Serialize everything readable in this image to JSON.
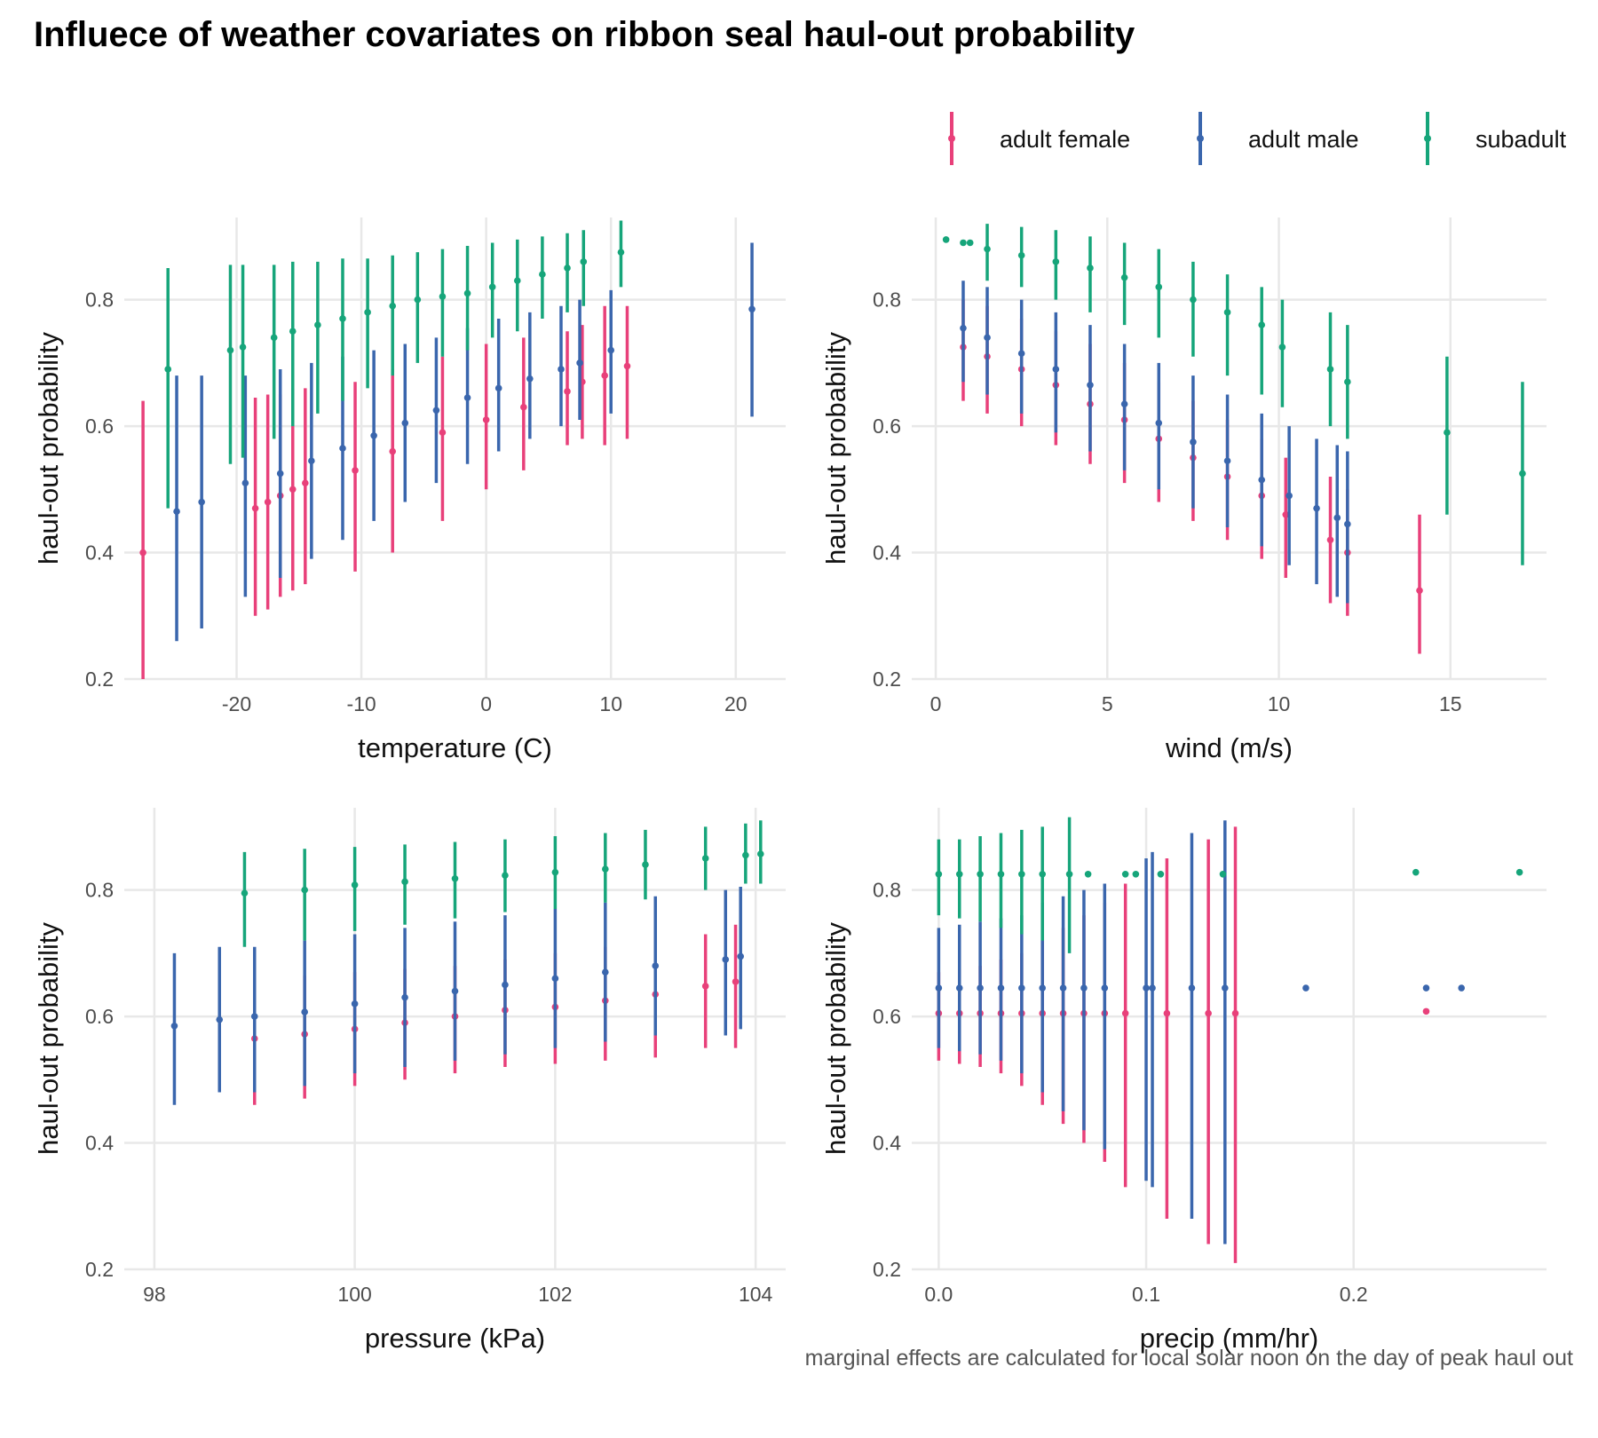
{
  "figure": {
    "title": "Influece of weather covariates on ribbon seal haul-out probability",
    "caption": "marginal effects are calculated for local solar noon on the day of peak haul out"
  },
  "colors": {
    "adult female": "#e8407a",
    "adult male": "#3a66ad",
    "subadult": "#16a57a"
  },
  "legend": {
    "position": "top-right",
    "items": [
      "adult female",
      "adult male",
      "subadult"
    ]
  },
  "chart_data": [
    {
      "type": "scatter",
      "panel": "temperature",
      "xlabel": "temperature (C)",
      "ylabel": "haul-out probability",
      "xlim": [
        -29,
        24
      ],
      "ylim": [
        0.2,
        0.93
      ],
      "xticks": [
        -20,
        -10,
        0,
        10,
        20
      ],
      "xtick_labels": [
        "-20",
        "-10",
        "0",
        "10",
        "20"
      ],
      "yticks": [
        0.2,
        0.4,
        0.6,
        0.8
      ],
      "ytick_labels": [
        "0.2",
        "0.4",
        "0.6",
        "0.8"
      ],
      "grid": true,
      "series": [
        {
          "name": "adult female",
          "x": [
            -27.5,
            -18.5,
            -17.5,
            -16.5,
            -15.5,
            -14.5,
            -10.5,
            -7.5,
            -3.5,
            0,
            3,
            6.5,
            7.7,
            9.5,
            11.3
          ],
          "y": [
            0.4,
            0.47,
            0.48,
            0.49,
            0.5,
            0.51,
            0.53,
            0.56,
            0.59,
            0.61,
            0.63,
            0.655,
            0.67,
            0.68,
            0.695
          ],
          "lower": [
            0.2,
            0.3,
            0.31,
            0.33,
            0.34,
            0.35,
            0.37,
            0.4,
            0.45,
            0.5,
            0.53,
            0.57,
            0.58,
            0.57,
            0.58
          ],
          "upper": [
            0.64,
            0.645,
            0.65,
            0.65,
            0.66,
            0.66,
            0.67,
            0.69,
            0.71,
            0.73,
            0.74,
            0.75,
            0.76,
            0.79,
            0.79
          ]
        },
        {
          "name": "adult male",
          "x": [
            -24.8,
            -22.8,
            -19.3,
            -16.5,
            -14,
            -11.5,
            -9,
            -6.5,
            -4,
            -1.5,
            1,
            3.5,
            6,
            7.5,
            10,
            21.3
          ],
          "y": [
            0.465,
            0.48,
            0.51,
            0.525,
            0.545,
            0.565,
            0.585,
            0.605,
            0.625,
            0.645,
            0.66,
            0.675,
            0.69,
            0.7,
            0.72,
            0.785
          ],
          "lower": [
            0.26,
            0.28,
            0.33,
            0.36,
            0.39,
            0.42,
            0.45,
            0.48,
            0.51,
            0.54,
            0.56,
            0.58,
            0.6,
            0.61,
            0.62,
            0.615
          ],
          "upper": [
            0.68,
            0.68,
            0.68,
            0.69,
            0.7,
            0.71,
            0.72,
            0.73,
            0.74,
            0.755,
            0.77,
            0.78,
            0.79,
            0.8,
            0.815,
            0.89
          ]
        },
        {
          "name": "subadult",
          "x": [
            -25.5,
            -20.5,
            -19.5,
            -17,
            -15.5,
            -13.5,
            -11.5,
            -9.5,
            -7.5,
            -5.5,
            -3.5,
            -1.5,
            0.5,
            2.5,
            4.5,
            6.5,
            7.8,
            10.8
          ],
          "y": [
            0.69,
            0.72,
            0.725,
            0.74,
            0.75,
            0.76,
            0.77,
            0.78,
            0.79,
            0.8,
            0.805,
            0.81,
            0.82,
            0.83,
            0.84,
            0.85,
            0.86,
            0.875
          ],
          "lower": [
            0.47,
            0.54,
            0.55,
            0.58,
            0.6,
            0.62,
            0.64,
            0.66,
            0.68,
            0.7,
            0.71,
            0.72,
            0.74,
            0.75,
            0.77,
            0.78,
            0.79,
            0.82
          ],
          "upper": [
            0.85,
            0.855,
            0.855,
            0.855,
            0.86,
            0.86,
            0.865,
            0.865,
            0.87,
            0.875,
            0.88,
            0.885,
            0.89,
            0.895,
            0.9,
            0.905,
            0.91,
            0.925
          ]
        }
      ]
    },
    {
      "type": "scatter",
      "panel": "wind",
      "xlabel": "wind (m/s)",
      "ylabel": "haul-out probability",
      "xlim": [
        -0.7,
        17.8
      ],
      "ylim": [
        0.2,
        0.93
      ],
      "xticks": [
        0,
        5,
        10,
        15
      ],
      "xtick_labels": [
        "0",
        "5",
        "10",
        "15"
      ],
      "yticks": [
        0.2,
        0.4,
        0.6,
        0.8
      ],
      "ytick_labels": [
        "0.2",
        "0.4",
        "0.6",
        "0.8"
      ],
      "grid": true,
      "series": [
        {
          "name": "adult female",
          "x": [
            0.8,
            1.5,
            2.5,
            3.5,
            4.5,
            5.5,
            6.5,
            7.5,
            8.5,
            9.5,
            10.2,
            11.5,
            12,
            14.1
          ],
          "y": [
            0.725,
            0.71,
            0.69,
            0.665,
            0.635,
            0.61,
            0.58,
            0.55,
            0.52,
            0.49,
            0.46,
            0.42,
            0.4,
            0.34
          ],
          "lower": [
            0.64,
            0.62,
            0.6,
            0.57,
            0.54,
            0.51,
            0.48,
            0.45,
            0.42,
            0.39,
            0.36,
            0.32,
            0.3,
            0.24
          ],
          "upper": [
            0.8,
            0.79,
            0.77,
            0.75,
            0.73,
            0.7,
            0.67,
            0.64,
            0.61,
            0.58,
            0.55,
            0.52,
            0.5,
            0.46
          ]
        },
        {
          "name": "adult male",
          "x": [
            0.8,
            1.5,
            2.5,
            3.5,
            4.5,
            5.5,
            6.5,
            7.5,
            8.5,
            9.5,
            10.3,
            11.1,
            11.7,
            12
          ],
          "y": [
            0.755,
            0.74,
            0.715,
            0.69,
            0.665,
            0.635,
            0.605,
            0.575,
            0.545,
            0.515,
            0.49,
            0.47,
            0.455,
            0.445
          ],
          "lower": [
            0.67,
            0.65,
            0.62,
            0.59,
            0.56,
            0.53,
            0.5,
            0.47,
            0.44,
            0.41,
            0.38,
            0.35,
            0.33,
            0.32
          ],
          "upper": [
            0.83,
            0.82,
            0.8,
            0.78,
            0.76,
            0.73,
            0.7,
            0.68,
            0.65,
            0.62,
            0.6,
            0.58,
            0.57,
            0.56
          ]
        },
        {
          "name": "subadult",
          "x": [
            0.3,
            0.8,
            1,
            1.5,
            2.5,
            3.5,
            4.5,
            5.5,
            6.5,
            7.5,
            8.5,
            9.5,
            10.1,
            11.5,
            12,
            14.9,
            17.1
          ],
          "y": [
            0.895,
            0.89,
            0.89,
            0.88,
            0.87,
            0.86,
            0.85,
            0.835,
            0.82,
            0.8,
            0.78,
            0.76,
            0.725,
            0.69,
            0.67,
            0.59,
            0.525
          ],
          "lower": [
            0.895,
            0.89,
            0.89,
            0.83,
            0.82,
            0.8,
            0.78,
            0.76,
            0.74,
            0.71,
            0.68,
            0.65,
            0.63,
            0.6,
            0.58,
            0.46,
            0.38
          ],
          "upper": [
            0.895,
            0.89,
            0.89,
            0.92,
            0.915,
            0.91,
            0.9,
            0.89,
            0.88,
            0.86,
            0.84,
            0.82,
            0.8,
            0.78,
            0.76,
            0.71,
            0.67
          ]
        }
      ]
    },
    {
      "type": "scatter",
      "panel": "pressure",
      "xlabel": "pressure (kPa)",
      "ylabel": "haul-out probability",
      "xlim": [
        97.7,
        104.3
      ],
      "ylim": [
        0.2,
        0.93
      ],
      "xticks": [
        98,
        100,
        102,
        104
      ],
      "xtick_labels": [
        "98",
        "100",
        "102",
        "104"
      ],
      "yticks": [
        0.2,
        0.4,
        0.6,
        0.8
      ],
      "ytick_labels": [
        "0.2",
        "0.4",
        "0.6",
        "0.8"
      ],
      "grid": true,
      "series": [
        {
          "name": "adult female",
          "x": [
            99,
            99.5,
            100,
            100.5,
            101,
            101.5,
            102,
            102.5,
            103,
            103.5,
            103.8
          ],
          "y": [
            0.565,
            0.572,
            0.58,
            0.59,
            0.6,
            0.61,
            0.615,
            0.625,
            0.635,
            0.648,
            0.655
          ],
          "lower": [
            0.46,
            0.47,
            0.49,
            0.5,
            0.51,
            0.52,
            0.525,
            0.53,
            0.535,
            0.55,
            0.55
          ],
          "upper": [
            0.66,
            0.665,
            0.67,
            0.675,
            0.68,
            0.69,
            0.7,
            0.71,
            0.725,
            0.73,
            0.745
          ]
        },
        {
          "name": "adult male",
          "x": [
            98.2,
            98.65,
            99,
            99.5,
            100,
            100.5,
            101,
            101.5,
            102,
            102.5,
            103,
            103.7,
            103.85
          ],
          "y": [
            0.585,
            0.595,
            0.6,
            0.607,
            0.62,
            0.63,
            0.64,
            0.65,
            0.66,
            0.67,
            0.68,
            0.69,
            0.695
          ],
          "lower": [
            0.46,
            0.48,
            0.48,
            0.49,
            0.51,
            0.52,
            0.53,
            0.54,
            0.55,
            0.56,
            0.57,
            0.57,
            0.58
          ],
          "upper": [
            0.7,
            0.71,
            0.71,
            0.72,
            0.73,
            0.74,
            0.75,
            0.76,
            0.77,
            0.78,
            0.79,
            0.8,
            0.805
          ]
        },
        {
          "name": "subadult",
          "x": [
            98.9,
            99.5,
            100,
            100.5,
            101,
            101.5,
            102,
            102.5,
            102.9,
            103.5,
            103.9,
            104.05
          ],
          "y": [
            0.795,
            0.8,
            0.808,
            0.813,
            0.818,
            0.823,
            0.828,
            0.833,
            0.84,
            0.85,
            0.855,
            0.857
          ],
          "lower": [
            0.71,
            0.72,
            0.735,
            0.745,
            0.755,
            0.765,
            0.77,
            0.78,
            0.785,
            0.8,
            0.81,
            0.81
          ],
          "upper": [
            0.86,
            0.865,
            0.868,
            0.872,
            0.876,
            0.88,
            0.885,
            0.89,
            0.895,
            0.9,
            0.905,
            0.91
          ]
        }
      ]
    },
    {
      "type": "scatter",
      "panel": "precip",
      "xlabel": "precip (mm/hr)",
      "ylabel": "haul-out probability",
      "xlim": [
        -0.013,
        0.293
      ],
      "ylim": [
        0.2,
        0.93
      ],
      "xticks": [
        0.0,
        0.1,
        0.2
      ],
      "xtick_labels": [
        "0.0",
        "0.1",
        "0.2"
      ],
      "yticks": [
        0.2,
        0.4,
        0.6,
        0.8
      ],
      "ytick_labels": [
        "0.2",
        "0.4",
        "0.6",
        "0.8"
      ],
      "grid": true,
      "series": [
        {
          "name": "adult female",
          "x": [
            0,
            0.01,
            0.02,
            0.03,
            0.04,
            0.05,
            0.06,
            0.07,
            0.08,
            0.09,
            0.11,
            0.13,
            0.143,
            0.235
          ],
          "y": [
            0.605,
            0.605,
            0.605,
            0.605,
            0.605,
            0.605,
            0.605,
            0.605,
            0.605,
            0.605,
            0.605,
            0.605,
            0.605,
            0.608
          ],
          "lower": [
            0.53,
            0.525,
            0.52,
            0.51,
            0.49,
            0.46,
            0.43,
            0.4,
            0.37,
            0.33,
            0.28,
            0.24,
            0.21,
            0.608
          ],
          "upper": [
            0.67,
            0.675,
            0.68,
            0.69,
            0.7,
            0.72,
            0.74,
            0.76,
            0.78,
            0.81,
            0.85,
            0.88,
            0.9,
            0.608
          ]
        },
        {
          "name": "adult male",
          "x": [
            0,
            0.01,
            0.02,
            0.03,
            0.04,
            0.05,
            0.06,
            0.07,
            0.08,
            0.1,
            0.103,
            0.122,
            0.138,
            0.177,
            0.235,
            0.252
          ],
          "y": [
            0.645,
            0.645,
            0.645,
            0.645,
            0.645,
            0.645,
            0.645,
            0.645,
            0.645,
            0.645,
            0.645,
            0.645,
            0.645,
            0.645,
            0.645,
            0.645
          ],
          "lower": [
            0.55,
            0.545,
            0.54,
            0.53,
            0.51,
            0.48,
            0.45,
            0.42,
            0.39,
            0.34,
            0.33,
            0.28,
            0.24,
            0.645,
            0.645,
            0.645
          ],
          "upper": [
            0.74,
            0.745,
            0.75,
            0.755,
            0.76,
            0.78,
            0.79,
            0.8,
            0.81,
            0.85,
            0.86,
            0.89,
            0.91,
            0.645,
            0.645,
            0.645
          ]
        },
        {
          "name": "subadult",
          "x": [
            0,
            0.01,
            0.02,
            0.03,
            0.04,
            0.05,
            0.063,
            0.072,
            0.09,
            0.095,
            0.107,
            0.137,
            0.23,
            0.28
          ],
          "y": [
            0.825,
            0.825,
            0.825,
            0.825,
            0.825,
            0.825,
            0.825,
            0.825,
            0.825,
            0.825,
            0.825,
            0.825,
            0.828,
            0.828
          ],
          "lower": [
            0.76,
            0.755,
            0.75,
            0.74,
            0.73,
            0.72,
            0.7,
            0.825,
            0.825,
            0.825,
            0.825,
            0.825,
            0.828,
            0.828
          ],
          "upper": [
            0.88,
            0.88,
            0.885,
            0.89,
            0.895,
            0.9,
            0.915,
            0.825,
            0.825,
            0.825,
            0.825,
            0.825,
            0.828,
            0.828
          ]
        }
      ]
    }
  ]
}
